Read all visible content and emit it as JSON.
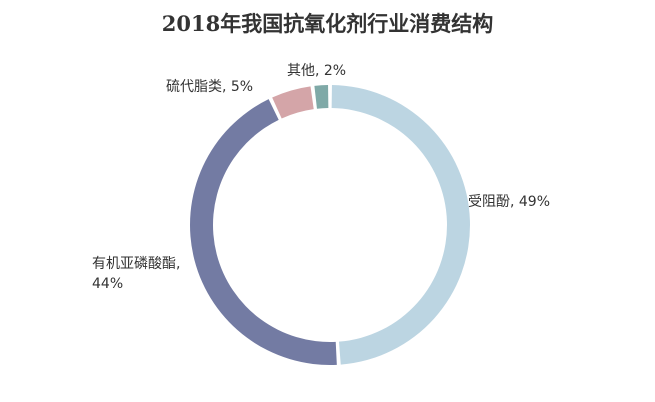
{
  "chart_data": {
    "type": "pie",
    "title": "2018年我国抗氧化剂行业消费结构",
    "slices": [
      {
        "name": "受阻酚",
        "value": 49,
        "pct_label": "49%",
        "color": "#bcd5e2"
      },
      {
        "name": "有机亚磷酸酯",
        "value": 44,
        "pct_label": "44%",
        "color": "#737ba3"
      },
      {
        "name": "硫代脂类",
        "value": 5,
        "pct_label": "5%",
        "color": "#d4a5a8"
      },
      {
        "name": "其他",
        "value": 2,
        "pct_label": "2%",
        "color": "#7fa9a7"
      }
    ],
    "legend": "none"
  }
}
